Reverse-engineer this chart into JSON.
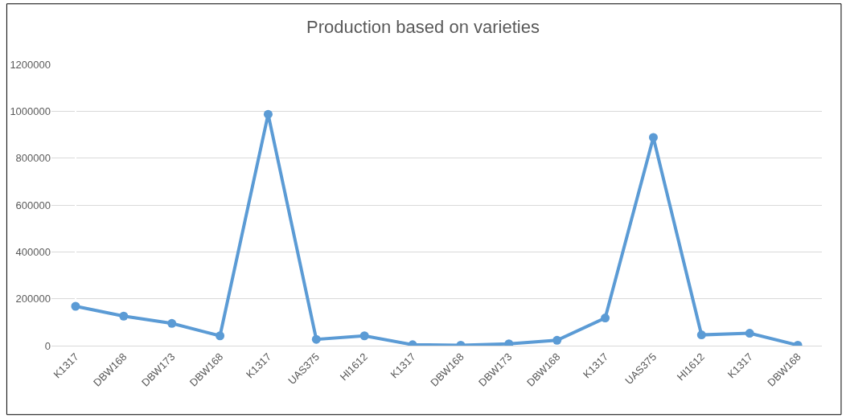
{
  "chart_data": {
    "type": "line",
    "title": "Production based on varieties",
    "categories": [
      "K1317",
      "DBW168",
      "DBW173",
      "DBW168",
      "K1317",
      "UAS375",
      "HI1612",
      "K1317",
      "DBW168",
      "DBW173",
      "DBW168",
      "K1317",
      "UAS375",
      "HI1612",
      "K1317",
      "DBW168"
    ],
    "series": [
      {
        "color": "#5b9bd5",
        "values": [
          168000,
          126000,
          95000,
          42000,
          987000,
          27000,
          42000,
          4000,
          2000,
          8000,
          23000,
          118000,
          888000,
          46000,
          53000,
          2000
        ]
      }
    ],
    "ylim": [
      0,
      1200000
    ],
    "yticks": [
      0,
      200000,
      400000,
      600000,
      800000,
      1000000,
      1200000
    ],
    "grid": "y",
    "marker": "circle",
    "line_style": "solid"
  }
}
